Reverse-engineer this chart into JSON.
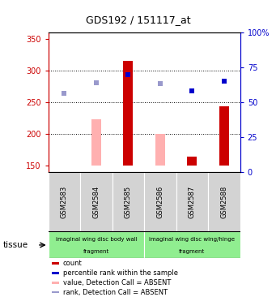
{
  "title": "GDS192 / 151117_at",
  "samples": [
    "GSM2583",
    "GSM2584",
    "GSM2585",
    "GSM2586",
    "GSM2587",
    "GSM2588"
  ],
  "ylim_left": [
    140,
    360
  ],
  "ylim_right": [
    0,
    100
  ],
  "yticks_left": [
    150,
    200,
    250,
    300,
    350
  ],
  "yticks_right": [
    0,
    25,
    50,
    75,
    100
  ],
  "ytick_labels_right": [
    "0",
    "25",
    "50",
    "75",
    "100%"
  ],
  "red_bars": [
    null,
    null,
    315,
    null,
    165,
    244
  ],
  "pink_bars": [
    null,
    224,
    null,
    201,
    null,
    null
  ],
  "blue_squares": [
    null,
    null,
    294,
    null,
    268,
    283
  ],
  "lightblue_squares": [
    265,
    281,
    null,
    280,
    null,
    283
  ],
  "red_bar_color": "#cc0000",
  "pink_bar_color": "#ffb0b0",
  "blue_sq_color": "#0000cc",
  "lightblue_sq_color": "#9999cc",
  "bar_bottom": 150,
  "bar_width": 0.3,
  "group1_label_line1": "imaginal wing disc body wall",
  "group1_label_line2": "fragment",
  "group2_label_line1": "imaginal wing disc wing/hinge",
  "group2_label_line2": "fragment",
  "group_color": "#90ee90",
  "tissue_label": "tissue",
  "legend_items": [
    {
      "color": "#cc0000",
      "label": "count"
    },
    {
      "color": "#0000cc",
      "label": "percentile rank within the sample"
    },
    {
      "color": "#ffb0b0",
      "label": "value, Detection Call = ABSENT"
    },
    {
      "color": "#9999cc",
      "label": "rank, Detection Call = ABSENT"
    }
  ],
  "left_axis_color": "#cc0000",
  "right_axis_color": "#0000cc",
  "sample_box_color": "#d3d3d3",
  "fig_width": 3.41,
  "fig_height": 3.66,
  "dpi": 100
}
